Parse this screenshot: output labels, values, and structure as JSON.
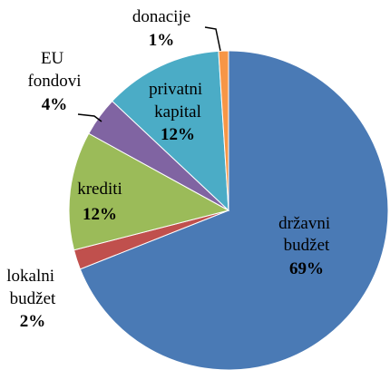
{
  "chart_data": {
    "type": "pie",
    "categories": [
      "državni budžet",
      "lokalni budžet",
      "krediti",
      "EU fondovi",
      "privatni kapital",
      "donacije"
    ],
    "values": [
      69,
      2,
      12,
      4,
      12,
      1
    ],
    "value_labels": [
      "69%",
      "2%",
      "12%",
      "4%",
      "12%",
      "1%"
    ],
    "colors": [
      "#4a7ab5",
      "#c0504d",
      "#9bbb59",
      "#8064a2",
      "#4bacc6",
      "#f79646"
    ]
  }
}
